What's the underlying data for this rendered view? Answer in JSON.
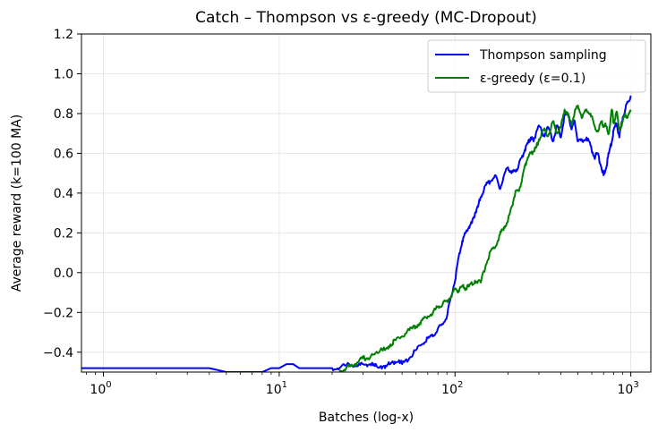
{
  "chart_data": {
    "type": "line",
    "title": "Catch – Thompson vs ε-greedy (MC-Dropout)",
    "xlabel": "Batches (log-x)",
    "ylabel": "Average reward (k=100 MA)",
    "xscale": "log",
    "xlim": [
      0.75,
      1300
    ],
    "ylim": [
      -0.5,
      1.2
    ],
    "xticks": [
      {
        "value": 1,
        "base": "10",
        "exp": "0"
      },
      {
        "value": 10,
        "base": "10",
        "exp": "1"
      },
      {
        "value": 100,
        "base": "10",
        "exp": "2"
      },
      {
        "value": 1000,
        "base": "10",
        "exp": "3"
      }
    ],
    "yticks": [
      {
        "value": -0.4,
        "label": "−0.4"
      },
      {
        "value": -0.2,
        "label": "−0.2"
      },
      {
        "value": 0.0,
        "label": "0.0"
      },
      {
        "value": 0.2,
        "label": "0.2"
      },
      {
        "value": 0.4,
        "label": "0.4"
      },
      {
        "value": 0.6,
        "label": "0.6"
      },
      {
        "value": 0.8,
        "label": "0.8"
      },
      {
        "value": 1.0,
        "label": "1.0"
      },
      {
        "value": 1.2,
        "label": "1.2"
      }
    ],
    "grid": true,
    "legend_position": "top-right",
    "series": [
      {
        "name": "Thompson sampling",
        "color": "#0000ff",
        "x": [
          0.75,
          1,
          2,
          3,
          4,
          5,
          6,
          7,
          8,
          9,
          10,
          11,
          12,
          13,
          15,
          18,
          20,
          22,
          25,
          28,
          30,
          33,
          35,
          38,
          40,
          42,
          45,
          48,
          50,
          55,
          60,
          65,
          70,
          75,
          80,
          85,
          90,
          95,
          100,
          105,
          110,
          115,
          120,
          125,
          130,
          135,
          140,
          150,
          160,
          170,
          180,
          190,
          200,
          210,
          220,
          230,
          240,
          250,
          260,
          270,
          280,
          290,
          300,
          320,
          340,
          360,
          380,
          400,
          420,
          440,
          460,
          480,
          500,
          530,
          560,
          590,
          620,
          650,
          680,
          700,
          720,
          750,
          780,
          800,
          830,
          860,
          900,
          930,
          960,
          1000
        ],
        "y": [
          -0.48,
          -0.48,
          -0.48,
          -0.48,
          -0.48,
          -0.5,
          -0.5,
          -0.5,
          -0.5,
          -0.48,
          -0.48,
          -0.46,
          -0.46,
          -0.48,
          -0.48,
          -0.48,
          -0.48,
          -0.48,
          -0.46,
          -0.47,
          -0.46,
          -0.46,
          -0.47,
          -0.47,
          -0.48,
          -0.45,
          -0.46,
          -0.44,
          -0.46,
          -0.43,
          -0.39,
          -0.36,
          -0.33,
          -0.32,
          -0.28,
          -0.26,
          -0.22,
          -0.12,
          -0.04,
          0.08,
          0.16,
          0.2,
          0.23,
          0.25,
          0.3,
          0.33,
          0.38,
          0.44,
          0.46,
          0.49,
          0.42,
          0.49,
          0.53,
          0.5,
          0.51,
          0.54,
          0.58,
          0.62,
          0.65,
          0.68,
          0.66,
          0.71,
          0.74,
          0.69,
          0.73,
          0.66,
          0.74,
          0.68,
          0.79,
          0.8,
          0.72,
          0.76,
          0.66,
          0.66,
          0.68,
          0.64,
          0.58,
          0.6,
          0.53,
          0.49,
          0.52,
          0.6,
          0.66,
          0.72,
          0.75,
          0.68,
          0.78,
          0.82,
          0.86,
          0.89
        ]
      },
      {
        "name": "ε-greedy (ε=0.1)",
        "color": "#008000",
        "x": [
          22,
          24,
          26,
          28,
          30,
          32,
          35,
          38,
          40,
          43,
          46,
          50,
          55,
          60,
          65,
          70,
          75,
          80,
          85,
          90,
          95,
          100,
          105,
          110,
          115,
          120,
          130,
          140,
          150,
          160,
          170,
          180,
          190,
          200,
          210,
          220,
          230,
          240,
          250,
          260,
          270,
          280,
          290,
          300,
          320,
          340,
          360,
          380,
          400,
          420,
          440,
          460,
          480,
          500,
          530,
          560,
          590,
          620,
          650,
          680,
          700,
          720,
          750,
          780,
          800,
          830,
          860,
          900,
          930,
          960,
          1000
        ],
        "y": [
          -0.49,
          -0.48,
          -0.47,
          -0.45,
          -0.43,
          -0.43,
          -0.41,
          -0.38,
          -0.39,
          -0.36,
          -0.34,
          -0.32,
          -0.29,
          -0.27,
          -0.24,
          -0.22,
          -0.2,
          -0.17,
          -0.16,
          -0.14,
          -0.12,
          -0.08,
          -0.09,
          -0.07,
          -0.08,
          -0.07,
          -0.04,
          -0.05,
          0.04,
          0.11,
          0.13,
          0.19,
          0.23,
          0.26,
          0.33,
          0.4,
          0.41,
          0.46,
          0.54,
          0.58,
          0.6,
          0.61,
          0.63,
          0.67,
          0.72,
          0.69,
          0.76,
          0.7,
          0.73,
          0.82,
          0.79,
          0.74,
          0.81,
          0.84,
          0.78,
          0.82,
          0.8,
          0.74,
          0.71,
          0.76,
          0.74,
          0.74,
          0.7,
          0.82,
          0.75,
          0.81,
          0.72,
          0.76,
          0.8,
          0.78,
          0.81
        ]
      }
    ]
  }
}
